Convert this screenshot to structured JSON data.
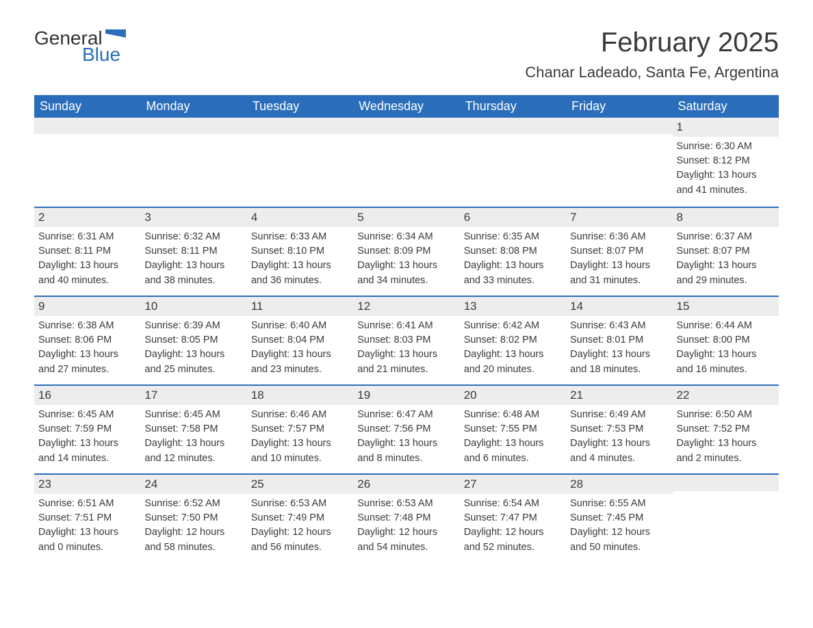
{
  "logo": {
    "text_general": "General",
    "text_blue": "Blue"
  },
  "title": "February 2025",
  "location": "Chanar Ladeado, Santa Fe, Argentina",
  "colors": {
    "header_bg": "#2a6ebb",
    "header_text": "#ffffff",
    "daynum_bg": "#ededed",
    "border": "#2a6ebb",
    "body_text": "#3a3a3a",
    "logo_blue": "#2a6ebb"
  },
  "typography": {
    "title_fontsize": 40,
    "location_fontsize": 22,
    "weekday_fontsize": 18,
    "daynum_fontsize": 17,
    "body_fontsize": 14.5
  },
  "weekdays": [
    "Sunday",
    "Monday",
    "Tuesday",
    "Wednesday",
    "Thursday",
    "Friday",
    "Saturday"
  ],
  "labels": {
    "sunrise": "Sunrise:",
    "sunset": "Sunset:",
    "daylight": "Daylight:"
  },
  "weeks": [
    [
      {
        "blank": true
      },
      {
        "blank": true
      },
      {
        "blank": true
      },
      {
        "blank": true
      },
      {
        "blank": true
      },
      {
        "blank": true
      },
      {
        "day": "1",
        "sunrise": "6:30 AM",
        "sunset": "8:12 PM",
        "daylight1": "13 hours",
        "daylight2": "and 41 minutes."
      }
    ],
    [
      {
        "day": "2",
        "sunrise": "6:31 AM",
        "sunset": "8:11 PM",
        "daylight1": "13 hours",
        "daylight2": "and 40 minutes."
      },
      {
        "day": "3",
        "sunrise": "6:32 AM",
        "sunset": "8:11 PM",
        "daylight1": "13 hours",
        "daylight2": "and 38 minutes."
      },
      {
        "day": "4",
        "sunrise": "6:33 AM",
        "sunset": "8:10 PM",
        "daylight1": "13 hours",
        "daylight2": "and 36 minutes."
      },
      {
        "day": "5",
        "sunrise": "6:34 AM",
        "sunset": "8:09 PM",
        "daylight1": "13 hours",
        "daylight2": "and 34 minutes."
      },
      {
        "day": "6",
        "sunrise": "6:35 AM",
        "sunset": "8:08 PM",
        "daylight1": "13 hours",
        "daylight2": "and 33 minutes."
      },
      {
        "day": "7",
        "sunrise": "6:36 AM",
        "sunset": "8:07 PM",
        "daylight1": "13 hours",
        "daylight2": "and 31 minutes."
      },
      {
        "day": "8",
        "sunrise": "6:37 AM",
        "sunset": "8:07 PM",
        "daylight1": "13 hours",
        "daylight2": "and 29 minutes."
      }
    ],
    [
      {
        "day": "9",
        "sunrise": "6:38 AM",
        "sunset": "8:06 PM",
        "daylight1": "13 hours",
        "daylight2": "and 27 minutes."
      },
      {
        "day": "10",
        "sunrise": "6:39 AM",
        "sunset": "8:05 PM",
        "daylight1": "13 hours",
        "daylight2": "and 25 minutes."
      },
      {
        "day": "11",
        "sunrise": "6:40 AM",
        "sunset": "8:04 PM",
        "daylight1": "13 hours",
        "daylight2": "and 23 minutes."
      },
      {
        "day": "12",
        "sunrise": "6:41 AM",
        "sunset": "8:03 PM",
        "daylight1": "13 hours",
        "daylight2": "and 21 minutes."
      },
      {
        "day": "13",
        "sunrise": "6:42 AM",
        "sunset": "8:02 PM",
        "daylight1": "13 hours",
        "daylight2": "and 20 minutes."
      },
      {
        "day": "14",
        "sunrise": "6:43 AM",
        "sunset": "8:01 PM",
        "daylight1": "13 hours",
        "daylight2": "and 18 minutes."
      },
      {
        "day": "15",
        "sunrise": "6:44 AM",
        "sunset": "8:00 PM",
        "daylight1": "13 hours",
        "daylight2": "and 16 minutes."
      }
    ],
    [
      {
        "day": "16",
        "sunrise": "6:45 AM",
        "sunset": "7:59 PM",
        "daylight1": "13 hours",
        "daylight2": "and 14 minutes."
      },
      {
        "day": "17",
        "sunrise": "6:45 AM",
        "sunset": "7:58 PM",
        "daylight1": "13 hours",
        "daylight2": "and 12 minutes."
      },
      {
        "day": "18",
        "sunrise": "6:46 AM",
        "sunset": "7:57 PM",
        "daylight1": "13 hours",
        "daylight2": "and 10 minutes."
      },
      {
        "day": "19",
        "sunrise": "6:47 AM",
        "sunset": "7:56 PM",
        "daylight1": "13 hours",
        "daylight2": "and 8 minutes."
      },
      {
        "day": "20",
        "sunrise": "6:48 AM",
        "sunset": "7:55 PM",
        "daylight1": "13 hours",
        "daylight2": "and 6 minutes."
      },
      {
        "day": "21",
        "sunrise": "6:49 AM",
        "sunset": "7:53 PM",
        "daylight1": "13 hours",
        "daylight2": "and 4 minutes."
      },
      {
        "day": "22",
        "sunrise": "6:50 AM",
        "sunset": "7:52 PM",
        "daylight1": "13 hours",
        "daylight2": "and 2 minutes."
      }
    ],
    [
      {
        "day": "23",
        "sunrise": "6:51 AM",
        "sunset": "7:51 PM",
        "daylight1": "13 hours",
        "daylight2": "and 0 minutes."
      },
      {
        "day": "24",
        "sunrise": "6:52 AM",
        "sunset": "7:50 PM",
        "daylight1": "12 hours",
        "daylight2": "and 58 minutes."
      },
      {
        "day": "25",
        "sunrise": "6:53 AM",
        "sunset": "7:49 PM",
        "daylight1": "12 hours",
        "daylight2": "and 56 minutes."
      },
      {
        "day": "26",
        "sunrise": "6:53 AM",
        "sunset": "7:48 PM",
        "daylight1": "12 hours",
        "daylight2": "and 54 minutes."
      },
      {
        "day": "27",
        "sunrise": "6:54 AM",
        "sunset": "7:47 PM",
        "daylight1": "12 hours",
        "daylight2": "and 52 minutes."
      },
      {
        "day": "28",
        "sunrise": "6:55 AM",
        "sunset": "7:45 PM",
        "daylight1": "12 hours",
        "daylight2": "and 50 minutes."
      },
      {
        "blank": true
      }
    ]
  ]
}
